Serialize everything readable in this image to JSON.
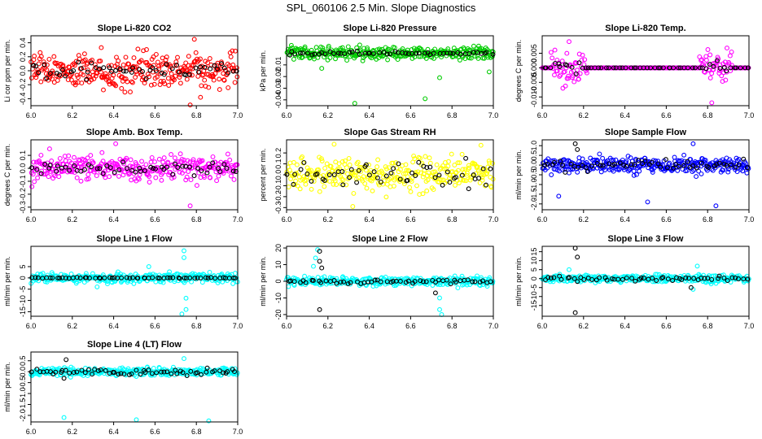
{
  "figure": {
    "title": "SPL_060106  2.5 Min. Slope Diagnostics"
  },
  "chart_data": [
    {
      "type": "scatter",
      "title": "Slope Li-820 CO2",
      "xlabel": "",
      "ylabel": "Li cor ppm per min.",
      "xlim": [
        6.0,
        7.0
      ],
      "ylim": [
        -0.5,
        0.5
      ],
      "xticks": [
        "6.0",
        "6.2",
        "6.4",
        "6.6",
        "6.8",
        "7.0"
      ],
      "yticks": [
        {
          "v": -0.4,
          "t": "-0.4"
        },
        {
          "v": -0.2,
          "t": "-0.2"
        },
        {
          "v": 0.0,
          "t": "0.0"
        },
        {
          "v": 0.2,
          "t": "0.2"
        },
        {
          "v": 0.4,
          "t": "0.4"
        }
      ],
      "series": [
        {
          "name": "all",
          "color": "#ff0000",
          "n": 320,
          "spread": 0.17,
          "outliers": [
            [
              6.34,
              0.33
            ],
            [
              6.82,
              -0.38
            ],
            [
              6.79,
              0.45
            ],
            [
              6.77,
              -0.49
            ]
          ]
        },
        {
          "name": "average",
          "color": "#000000",
          "n": 55,
          "spread": 0.09,
          "outliers": []
        }
      ]
    },
    {
      "type": "scatter",
      "title": "Slope Li-820 Pressure",
      "xlabel": "",
      "ylabel": "kPa per min.",
      "xlim": [
        6.0,
        7.0
      ],
      "ylim": [
        -0.045,
        0.015
      ],
      "xticks": [
        "6.0",
        "6.2",
        "6.4",
        "6.6",
        "6.8",
        "7.0"
      ],
      "yticks": [
        {
          "v": -0.04,
          "t": "-0.04"
        },
        {
          "v": -0.03,
          "t": "-0.03"
        },
        {
          "v": -0.02,
          "t": "-0.02"
        },
        {
          "v": -0.01,
          "t": "-0.01"
        }
      ],
      "series": [
        {
          "name": "all",
          "color": "#00cc00",
          "n": 320,
          "spread": 0.004,
          "outliers": [
            [
              6.33,
              -0.043
            ],
            [
              6.67,
              -0.039
            ],
            [
              6.17,
              -0.013
            ],
            [
              6.74,
              -0.021
            ],
            [
              6.98,
              -0.016
            ]
          ]
        },
        {
          "name": "average",
          "color": "#000000",
          "n": 55,
          "spread": 0.0012,
          "outliers": []
        }
      ]
    },
    {
      "type": "scatter",
      "title": "Slope Li-820 Temp.",
      "xlabel": "",
      "ylabel": "degrees C per min.",
      "xlim": [
        6.0,
        7.0
      ],
      "ylim": [
        -0.013,
        0.011
      ],
      "xticks": [
        "6.0",
        "6.2",
        "6.4",
        "6.6",
        "6.8",
        "7.0"
      ],
      "yticks": [
        {
          "v": -0.01,
          "t": "-0.010"
        },
        {
          "v": -0.005,
          "t": "-0.005"
        },
        {
          "v": 0.0,
          "t": "0.000"
        },
        {
          "v": 0.005,
          "t": "0.005"
        }
      ],
      "series": [
        {
          "name": "all",
          "color": "#ff00ff",
          "n": 300,
          "spread": 0.0035,
          "outliers": [
            [
              6.1,
              -0.007
            ],
            [
              6.82,
              -0.012
            ],
            [
              6.13,
              0.009
            ]
          ]
        },
        {
          "name": "average",
          "color": "#000000",
          "n": 60,
          "spread": 0.0015,
          "outliers": []
        }
      ]
    },
    {
      "type": "scatter",
      "title": "Slope Amb. Box Temp.",
      "xlabel": "",
      "ylabel": "degrees C per min.",
      "xlim": [
        6.0,
        7.0
      ],
      "ylim": [
        -0.32,
        0.22
      ],
      "xticks": [
        "6.0",
        "6.2",
        "6.4",
        "6.6",
        "6.8",
        "7.0"
      ],
      "yticks": [
        {
          "v": -0.3,
          "t": "-0.3"
        },
        {
          "v": -0.2,
          "t": "-0.2"
        },
        {
          "v": -0.1,
          "t": "-0.1"
        },
        {
          "v": 0.0,
          "t": "0.0"
        },
        {
          "v": 0.1,
          "t": "0.1"
        }
      ],
      "series": [
        {
          "name": "all",
          "color": "#ff00ff",
          "n": 320,
          "spread": 0.07,
          "outliers": [
            [
              6.41,
              0.19
            ],
            [
              6.77,
              -0.29
            ],
            [
              6.09,
              0.15
            ]
          ]
        },
        {
          "name": "average",
          "color": "#000000",
          "n": 55,
          "spread": 0.04,
          "outliers": []
        }
      ]
    },
    {
      "type": "scatter",
      "title": "Slope Gas Stream RH",
      "xlabel": "",
      "ylabel": "percent per min.",
      "xlim": [
        6.0,
        7.0
      ],
      "ylim": [
        -0.32,
        0.32
      ],
      "xticks": [
        "6.0",
        "6.2",
        "6.4",
        "6.6",
        "6.8",
        "7.0"
      ],
      "yticks": [
        {
          "v": -0.3,
          "t": "-0.3"
        },
        {
          "v": -0.2,
          "t": "-0.2"
        },
        {
          "v": -0.1,
          "t": "-0.1"
        },
        {
          "v": 0.0,
          "t": "0.0"
        },
        {
          "v": 0.1,
          "t": "0.1"
        },
        {
          "v": 0.2,
          "t": "0.2"
        }
      ],
      "series": [
        {
          "name": "all",
          "color": "#ffff00",
          "n": 300,
          "spread": 0.11,
          "outliers": [
            [
              6.23,
              0.28
            ],
            [
              6.32,
              -0.29
            ],
            [
              6.94,
              0.27
            ]
          ]
        },
        {
          "name": "average",
          "color": "#000000",
          "n": 55,
          "spread": 0.09,
          "outliers": []
        }
      ]
    },
    {
      "type": "scatter",
      "title": "Slope Sample Flow",
      "xlabel": "",
      "ylabel": "ml/min per min.",
      "xlim": [
        6.0,
        7.0
      ],
      "ylim": [
        -2.3,
        1.3
      ],
      "xticks": [
        "6.0",
        "6.2",
        "6.4",
        "6.6",
        "6.8",
        "7.0"
      ],
      "yticks": [
        {
          "v": -2.0,
          "t": "-2.0"
        },
        {
          "v": -1.5,
          "t": "-1.5"
        },
        {
          "v": -1.0,
          "t": "-1.0"
        },
        {
          "v": -0.5,
          "t": "-0.5"
        },
        {
          "v": 0.0,
          "t": "0.0"
        },
        {
          "v": 0.5,
          "t": "0.5"
        },
        {
          "v": 1.0,
          "t": "1.0"
        }
      ],
      "series": [
        {
          "name": "all",
          "color": "#0000ff",
          "n": 320,
          "spread": 0.28,
          "outliers": [
            [
              6.08,
              -1.6
            ],
            [
              6.51,
              -1.9
            ],
            [
              6.84,
              -2.1
            ],
            [
              6.73,
              1.1
            ]
          ]
        },
        {
          "name": "average",
          "color": "#000000",
          "n": 55,
          "spread": 0.2,
          "outliers": [
            [
              6.16,
              1.1
            ],
            [
              6.17,
              0.8
            ]
          ]
        }
      ]
    },
    {
      "type": "scatter",
      "title": "Slope Line 1 Flow",
      "xlabel": "",
      "ylabel": "ml/min per min.",
      "xlim": [
        6.0,
        7.0
      ],
      "ylim": [
        -17,
        14
      ],
      "xticks": [
        "6.0",
        "6.2",
        "6.4",
        "6.6",
        "6.8",
        "7.0"
      ],
      "yticks": [
        {
          "v": -15,
          "t": "-15"
        },
        {
          "v": -10,
          "t": "-10"
        },
        {
          "v": -5,
          "t": "-5"
        },
        {
          "v": 0,
          "t": "0"
        },
        {
          "v": 5,
          "t": "5"
        }
      ],
      "series": [
        {
          "name": "all",
          "color": "#00ffff",
          "n": 320,
          "spread": 1.5,
          "outliers": [
            [
              6.74,
              12
            ],
            [
              6.74,
              9
            ],
            [
              6.75,
              -9
            ],
            [
              6.75,
              -14
            ],
            [
              6.73,
              -16
            ],
            [
              6.32,
              -4
            ],
            [
              6.57,
              5
            ]
          ]
        },
        {
          "name": "average",
          "color": "#000000",
          "n": 60,
          "spread": 0.15,
          "outliers": []
        }
      ]
    },
    {
      "type": "scatter",
      "title": "Slope Line 2 Flow",
      "xlabel": "",
      "ylabel": "ml/min per min.",
      "xlim": [
        6.0,
        7.0
      ],
      "ylim": [
        -21,
        21
      ],
      "xticks": [
        "6.0",
        "6.2",
        "6.4",
        "6.6",
        "6.8",
        "7.0"
      ],
      "yticks": [
        {
          "v": -20,
          "t": "-20"
        },
        {
          "v": -10,
          "t": "-10"
        },
        {
          "v": 0,
          "t": "0"
        },
        {
          "v": 10,
          "t": "10"
        },
        {
          "v": 20,
          "t": "20"
        }
      ],
      "series": [
        {
          "name": "all",
          "color": "#00ffff",
          "n": 320,
          "spread": 1.8,
          "outliers": [
            [
              6.13,
              9
            ],
            [
              6.14,
              14
            ],
            [
              6.15,
              19
            ],
            [
              6.74,
              -10
            ],
            [
              6.74,
              -17
            ],
            [
              6.75,
              -20
            ]
          ]
        },
        {
          "name": "average",
          "color": "#000000",
          "n": 55,
          "spread": 1.1,
          "outliers": [
            [
              6.16,
              18
            ],
            [
              6.16,
              12
            ],
            [
              6.17,
              8
            ],
            [
              6.16,
              -17
            ],
            [
              6.72,
              -7
            ]
          ]
        }
      ]
    },
    {
      "type": "scatter",
      "title": "Slope Line 3 Flow",
      "xlabel": "",
      "ylabel": "ml/min per min.",
      "xlim": [
        6.0,
        7.0
      ],
      "ylim": [
        -21,
        18
      ],
      "xticks": [
        "6.0",
        "6.2",
        "6.4",
        "6.6",
        "6.8",
        "7.0"
      ],
      "yticks": [
        {
          "v": -15,
          "t": "-15"
        },
        {
          "v": -10,
          "t": "-10"
        },
        {
          "v": -5,
          "t": "-5"
        },
        {
          "v": 0,
          "t": "0"
        },
        {
          "v": 5,
          "t": "5"
        },
        {
          "v": 10,
          "t": "10"
        },
        {
          "v": 15,
          "t": "15"
        }
      ],
      "series": [
        {
          "name": "all",
          "color": "#00ffff",
          "n": 320,
          "spread": 1.6,
          "outliers": [
            [
              6.75,
              7
            ],
            [
              6.73,
              -6
            ],
            [
              6.13,
              5
            ]
          ]
        },
        {
          "name": "average",
          "color": "#000000",
          "n": 55,
          "spread": 1.0,
          "outliers": [
            [
              6.16,
              17
            ],
            [
              6.17,
              12
            ],
            [
              6.16,
              -19
            ],
            [
              6.72,
              -5
            ]
          ]
        }
      ]
    },
    {
      "type": "scatter",
      "title": "Slope Line 4 (LT) Flow",
      "xlabel": "",
      "ylabel": "ml/min per min.",
      "xlim": [
        6.0,
        7.0
      ],
      "ylim": [
        -2.3,
        0.9
      ],
      "xticks": [
        "6.0",
        "6.2",
        "6.4",
        "6.6",
        "6.8",
        "7.0"
      ],
      "yticks": [
        {
          "v": -2.0,
          "t": "-2.0"
        },
        {
          "v": -1.5,
          "t": "-1.5"
        },
        {
          "v": -1.0,
          "t": "-1.0"
        },
        {
          "v": -0.5,
          "t": "-0.5"
        },
        {
          "v": 0.0,
          "t": "0.0"
        },
        {
          "v": 0.5,
          "t": "0.5"
        }
      ],
      "series": [
        {
          "name": "all",
          "color": "#00ffff",
          "n": 320,
          "spread": 0.13,
          "outliers": [
            [
              6.16,
              -2.1
            ],
            [
              6.51,
              -2.2
            ],
            [
              6.86,
              -2.25
            ],
            [
              6.74,
              0.6
            ]
          ]
        },
        {
          "name": "average",
          "color": "#000000",
          "n": 60,
          "spread": 0.1,
          "outliers": [
            [
              6.17,
              0.55
            ],
            [
              6.16,
              -0.3
            ]
          ]
        }
      ]
    }
  ]
}
